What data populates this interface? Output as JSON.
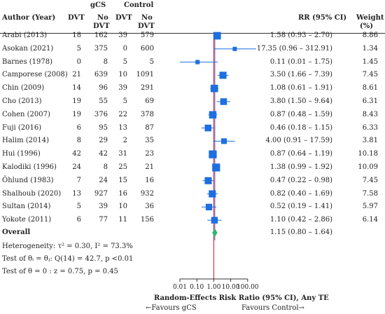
{
  "header": {
    "group1": "gCS",
    "group2": "Control",
    "author_col": "Author (Year)",
    "dvt": "DVT",
    "no": "No",
    "nodvt": "DVT",
    "rr_col": "RR (95% CI)",
    "weight_col": "Weight",
    "weight_unit": "(%)"
  },
  "overall": {
    "label": "Overall",
    "ci_text": "1.15 (0.80 – 1.64)"
  },
  "stats": {
    "heterogeneity": "Heterogeneity: τ² = 0.30, I² = 73.3%",
    "test_equal": "Test of θᵢ = θⱼ: Q(14) = 42.7, p <0.01",
    "test_zero": "Test of θ = 0 : z = 0.75, p = 0.45"
  },
  "footer": {
    "axis_title": "Random-Effects Risk Ratio (95% CI), Any TE",
    "favours_left": "←Favours gCS",
    "favours_right": "Favours Control→"
  },
  "colors": {
    "study_marker": "#1e6fe0",
    "overall_marker": "#2bb673",
    "ref_line": "#c8102e",
    "overall_line": "#6b4ea8"
  },
  "chart_data": {
    "type": "forest",
    "scale": "log",
    "xlim": [
      0.01,
      1000
    ],
    "xticks": [
      0.01,
      0.1,
      1.0,
      10.0,
      100.0
    ],
    "xtick_labels": [
      "0.01",
      "0.10",
      "1.00",
      "10.00",
      "100.00"
    ],
    "reference_line": 1.0,
    "studies": [
      {
        "name": "Arabi (2013)",
        "gcs_dvt": "18",
        "gcs_nodvt": "162",
        "ctrl_dvt": "39",
        "ctrl_nodvt": "579",
        "rr": 1.58,
        "lo": 0.93,
        "hi": 2.7,
        "ci_text": "1.58 (0.93 – 2.70)",
        "weight": "8.86"
      },
      {
        "name": "Asokan (2021)",
        "gcs_dvt": "5",
        "gcs_nodvt": "375",
        "ctrl_dvt": "0",
        "ctrl_nodvt": "600",
        "rr": 17.35,
        "lo": 0.96,
        "hi": 312.91,
        "ci_text": "17.35 (0.96 – 312.91)",
        "weight": "1.34"
      },
      {
        "name": "Barnes (1978)",
        "gcs_dvt": "0",
        "gcs_nodvt": "8",
        "ctrl_dvt": "5",
        "ctrl_nodvt": "5",
        "rr": 0.11,
        "lo": 0.01,
        "hi": 1.75,
        "ci_text": "0.11 (0.01 – 1.75)",
        "weight": "1.45"
      },
      {
        "name": "Camporese (2008)",
        "gcs_dvt": "21",
        "gcs_nodvt": "639",
        "ctrl_dvt": "10",
        "ctrl_nodvt": "1091",
        "rr": 3.5,
        "lo": 1.66,
        "hi": 7.39,
        "ci_text": "3.50 (1.66 – 7.39)",
        "weight": "7.45"
      },
      {
        "name": "Chin (2009)",
        "gcs_dvt": "14",
        "gcs_nodvt": "96",
        "ctrl_dvt": "39",
        "ctrl_nodvt": "291",
        "rr": 1.08,
        "lo": 0.61,
        "hi": 1.91,
        "ci_text": "1.08 (0.61 – 1.91)",
        "weight": "8.61"
      },
      {
        "name": "Cho (2013)",
        "gcs_dvt": "19",
        "gcs_nodvt": "55",
        "ctrl_dvt": "5",
        "ctrl_nodvt": "69",
        "rr": 3.8,
        "lo": 1.5,
        "hi": 9.64,
        "ci_text": "3.80 (1.50 – 9.64)",
        "weight": "6.31"
      },
      {
        "name": "Cohen (2007)",
        "gcs_dvt": "19",
        "gcs_nodvt": "376",
        "ctrl_dvt": "22",
        "ctrl_nodvt": "378",
        "rr": 0.87,
        "lo": 0.48,
        "hi": 1.59,
        "ci_text": "0.87 (0.48 – 1.59)",
        "weight": "8.43"
      },
      {
        "name": "Fuji (2016)",
        "gcs_dvt": "6",
        "gcs_nodvt": "95",
        "ctrl_dvt": "13",
        "ctrl_nodvt": "87",
        "rr": 0.46,
        "lo": 0.18,
        "hi": 1.15,
        "ci_text": "0.46 (0.18 – 1.15)",
        "weight": "6.33"
      },
      {
        "name": "Halim (2014)",
        "gcs_dvt": "8",
        "gcs_nodvt": "29",
        "ctrl_dvt": "2",
        "ctrl_nodvt": "35",
        "rr": 4.0,
        "lo": 0.91,
        "hi": 17.59,
        "ci_text": "4.00 (0.91 – 17.59)",
        "weight": "3.81"
      },
      {
        "name": "Hui (1996)",
        "gcs_dvt": "42",
        "gcs_nodvt": "42",
        "ctrl_dvt": "31",
        "ctrl_nodvt": "23",
        "rr": 0.87,
        "lo": 0.64,
        "hi": 1.19,
        "ci_text": "0.87 (0.64 – 1.19)",
        "weight": "10.18"
      },
      {
        "name": "Kalodiki (1996)",
        "gcs_dvt": "24",
        "gcs_nodvt": "8",
        "ctrl_dvt": "25",
        "ctrl_nodvt": "21",
        "rr": 1.38,
        "lo": 0.99,
        "hi": 1.92,
        "ci_text": "1.38 (0.99 – 1.92)",
        "weight": "10.09"
      },
      {
        "name": "Öhlund (1983)",
        "gcs_dvt": "7",
        "gcs_nodvt": "24",
        "ctrl_dvt": "15",
        "ctrl_nodvt": "16",
        "rr": 0.47,
        "lo": 0.22,
        "hi": 0.98,
        "ci_text": "0.47 (0.22 – 0.98)",
        "weight": "7.45"
      },
      {
        "name": "Shalhoub (2020)",
        "gcs_dvt": "13",
        "gcs_nodvt": "927",
        "ctrl_dvt": "16",
        "ctrl_nodvt": "932",
        "rr": 0.82,
        "lo": 0.4,
        "hi": 1.69,
        "ci_text": "0.82 (0.40 – 1.69)",
        "weight": "7.58"
      },
      {
        "name": "Sultan (2014)",
        "gcs_dvt": "5",
        "gcs_nodvt": "39",
        "ctrl_dvt": "10",
        "ctrl_nodvt": "36",
        "rr": 0.52,
        "lo": 0.19,
        "hi": 1.41,
        "ci_text": "0.52 (0.19 – 1.41)",
        "weight": "5.97"
      },
      {
        "name": "Yokote (2011)",
        "gcs_dvt": "6",
        "gcs_nodvt": "77",
        "ctrl_dvt": "11",
        "ctrl_nodvt": "156",
        "rr": 1.1,
        "lo": 0.42,
        "hi": 2.86,
        "ci_text": "1.10 (0.42 – 2.86)",
        "weight": "6.14"
      }
    ],
    "pooled": {
      "rr": 1.15,
      "lo": 0.8,
      "hi": 1.64
    }
  }
}
